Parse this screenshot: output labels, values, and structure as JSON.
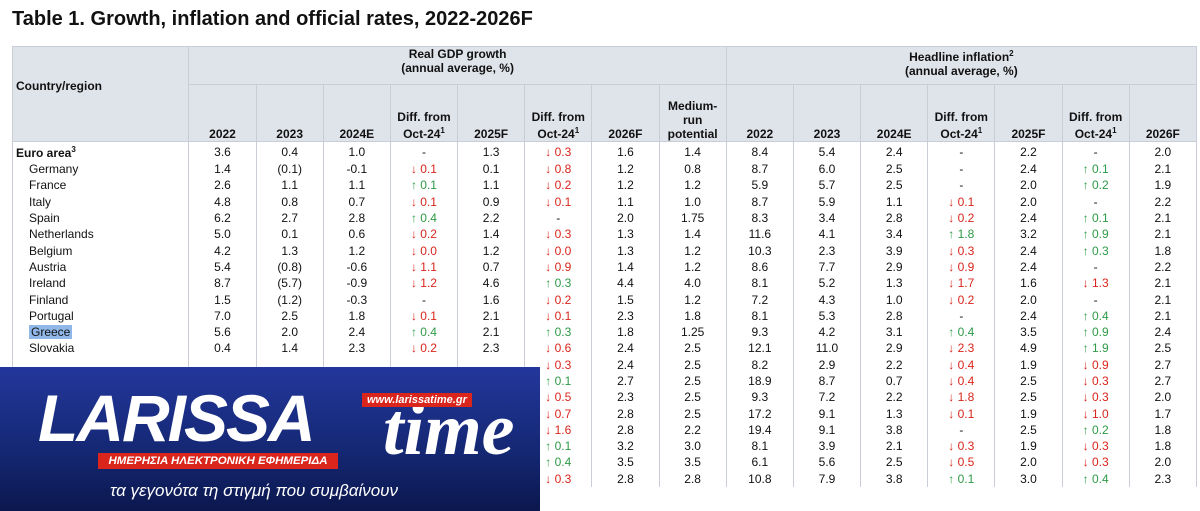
{
  "title": "Table 1. Growth, inflation and official rates, 2022-2026F",
  "table": {
    "country_header": "Country/region",
    "groups": [
      {
        "title": "Real GDP growth",
        "subtitle": "(annual average, %)",
        "span": 8
      },
      {
        "title": "Headline inflation",
        "sup": "2",
        "subtitle": "(annual average, %)",
        "span": 7
      }
    ],
    "columns": [
      {
        "text": "2022"
      },
      {
        "text": "2023"
      },
      {
        "text": "2024E"
      },
      {
        "text": "Diff. from Oct-24",
        "sup": "1"
      },
      {
        "text": "2025F"
      },
      {
        "text": "Diff. from Oct-24",
        "sup": "1"
      },
      {
        "text": "2026F"
      },
      {
        "text": "Medium-run potential"
      },
      {
        "text": "2022"
      },
      {
        "text": "2023"
      },
      {
        "text": "2024E"
      },
      {
        "text": "Diff. from Oct-24",
        "sup": "1"
      },
      {
        "text": "2025F"
      },
      {
        "text": "Diff. from Oct-24",
        "sup": "1"
      },
      {
        "text": "2026F"
      }
    ],
    "rows": [
      {
        "country": "Euro area",
        "sup": "3",
        "bold": true,
        "cells": [
          "3.6",
          "0.4",
          "1.0",
          "-",
          "1.3",
          "↓ 0.3",
          "1.6",
          "1.4",
          "8.4",
          "5.4",
          "2.4",
          "-",
          "2.2",
          "-",
          "2.0"
        ]
      },
      {
        "country": "Germany",
        "cells": [
          "1.4",
          "(0.1)",
          "-0.1",
          "↓ 0.1",
          "0.1",
          "↓ 0.8",
          "1.2",
          "0.8",
          "8.7",
          "6.0",
          "2.5",
          "-",
          "2.4",
          "↑ 0.1",
          "2.1"
        ]
      },
      {
        "country": "France",
        "cells": [
          "2.6",
          "1.1",
          "1.1",
          "↑ 0.1",
          "1.1",
          "↓ 0.2",
          "1.2",
          "1.2",
          "5.9",
          "5.7",
          "2.5",
          "-",
          "2.0",
          "↑ 0.2",
          "1.9"
        ]
      },
      {
        "country": "Italy",
        "cells": [
          "4.8",
          "0.8",
          "0.7",
          "↓ 0.1",
          "0.9",
          "↓ 0.1",
          "1.1",
          "1.0",
          "8.7",
          "5.9",
          "1.1",
          "↓ 0.1",
          "2.0",
          "-",
          "2.2"
        ]
      },
      {
        "country": "Spain",
        "cells": [
          "6.2",
          "2.7",
          "2.8",
          "↑ 0.4",
          "2.2",
          "-",
          "2.0",
          "1.75",
          "8.3",
          "3.4",
          "2.8",
          "↓ 0.2",
          "2.4",
          "↑ 0.1",
          "2.1"
        ]
      },
      {
        "country": "Netherlands",
        "cells": [
          "5.0",
          "0.1",
          "0.6",
          "↓ 0.2",
          "1.4",
          "↓ 0.3",
          "1.3",
          "1.4",
          "11.6",
          "4.1",
          "3.4",
          "↑ 1.8",
          "3.2",
          "↑ 0.9",
          "2.1"
        ]
      },
      {
        "country": "Belgium",
        "cells": [
          "4.2",
          "1.3",
          "1.2",
          "↓ 0.0",
          "1.2",
          "↓ 0.0",
          "1.3",
          "1.2",
          "10.3",
          "2.3",
          "3.9",
          "↓ 0.3",
          "2.4",
          "↑ 0.3",
          "1.8"
        ]
      },
      {
        "country": "Austria",
        "cells": [
          "5.4",
          "(0.8)",
          "-0.6",
          "↓ 1.1",
          "0.7",
          "↓ 0.9",
          "1.4",
          "1.2",
          "8.6",
          "7.7",
          "2.9",
          "↓ 0.9",
          "2.4",
          "-",
          "2.2"
        ]
      },
      {
        "country": "Ireland",
        "cells": [
          "8.7",
          "(5.7)",
          "-0.9",
          "↓ 1.2",
          "4.6",
          "↑ 0.3",
          "4.4",
          "4.0",
          "8.1",
          "5.2",
          "1.3",
          "↓ 1.7",
          "1.6",
          "↓ 1.3",
          "2.1"
        ]
      },
      {
        "country": "Finland",
        "cells": [
          "1.5",
          "(1.2)",
          "-0.3",
          "-",
          "1.6",
          "↓ 0.2",
          "1.5",
          "1.2",
          "7.2",
          "4.3",
          "1.0",
          "↓ 0.2",
          "2.0",
          "-",
          "2.1"
        ]
      },
      {
        "country": "Portugal",
        "cells": [
          "7.0",
          "2.5",
          "1.8",
          "↓ 0.1",
          "2.1",
          "↓ 0.1",
          "2.3",
          "1.8",
          "8.1",
          "5.3",
          "2.8",
          "-",
          "2.4",
          "↑ 0.4",
          "2.1"
        ]
      },
      {
        "country": "Greece",
        "highlighted": true,
        "cells": [
          "5.6",
          "2.0",
          "2.4",
          "↑ 0.4",
          "2.1",
          "↑ 0.3",
          "1.8",
          "1.25",
          "9.3",
          "4.2",
          "3.1",
          "↑ 0.4",
          "3.5",
          "↑ 0.9",
          "2.4"
        ]
      },
      {
        "country": "Slovakia",
        "cells": [
          "0.4",
          "1.4",
          "2.3",
          "↓ 0.2",
          "2.3",
          "↓ 0.6",
          "2.4",
          "2.5",
          "12.1",
          "11.0",
          "2.9",
          "↓ 2.3",
          "4.9",
          "↑ 1.9",
          "2.5"
        ]
      },
      {
        "country": null,
        "cells": [
          null,
          null,
          null,
          null,
          null,
          "↓ 0.3",
          "2.4",
          "2.5",
          "8.2",
          "2.9",
          "2.2",
          "↓ 0.4",
          "1.9",
          "↓ 0.9",
          "2.7"
        ]
      },
      {
        "country": null,
        "cells": [
          null,
          null,
          null,
          null,
          null,
          "↑ 0.1",
          "2.7",
          "2.5",
          "18.9",
          "8.7",
          "0.7",
          "↓ 0.4",
          "2.5",
          "↓ 0.3",
          "2.7"
        ]
      },
      {
        "country": null,
        "cells": [
          null,
          null,
          null,
          null,
          null,
          "↓ 0.5",
          "2.3",
          "2.5",
          "9.3",
          "7.2",
          "2.2",
          "↓ 1.8",
          "2.5",
          "↓ 0.3",
          "2.0"
        ]
      },
      {
        "country": null,
        "cells": [
          null,
          null,
          null,
          null,
          null,
          "↓ 0.7",
          "2.8",
          "2.5",
          "17.2",
          "9.1",
          "1.3",
          "↓ 0.1",
          "1.9",
          "↓ 1.0",
          "1.7"
        ]
      },
      {
        "country": null,
        "cells": [
          null,
          null,
          null,
          null,
          null,
          "↓ 1.6",
          "2.8",
          "2.2",
          "19.4",
          "9.1",
          "3.8",
          "-",
          "2.5",
          "↑ 0.2",
          "1.8"
        ]
      },
      {
        "country": null,
        "cells": [
          null,
          null,
          null,
          null,
          null,
          "↑ 0.1",
          "3.2",
          "3.0",
          "8.1",
          "3.9",
          "2.1",
          "↓ 0.3",
          "1.9",
          "↓ 0.3",
          "1.8"
        ]
      },
      {
        "country": null,
        "cells": [
          null,
          null,
          null,
          null,
          null,
          "↑ 0.4",
          "3.5",
          "3.5",
          "6.1",
          "5.6",
          "2.5",
          "↓ 0.5",
          "2.0",
          "↓ 0.3",
          "2.0"
        ]
      },
      {
        "country": null,
        "cells": [
          null,
          null,
          null,
          null,
          null,
          "↓ 0.3",
          "2.8",
          "2.8",
          "10.8",
          "7.9",
          "3.8",
          "↑ 0.1",
          "3.0",
          "↑ 0.4",
          "2.3"
        ]
      }
    ]
  },
  "logo": {
    "brand_left": "LARISSA",
    "brand_right": "time",
    "url": "www.larissatime.gr",
    "tagline": "ΗΜΕΡΗΣΙΑ ΗΛΕΚΤΡΟΝΙΚΗ ΕΦΗΜΕΡΙΔΑ",
    "slogan": "τα γεγονότα τη στιγμή που συμβαίνουν"
  }
}
